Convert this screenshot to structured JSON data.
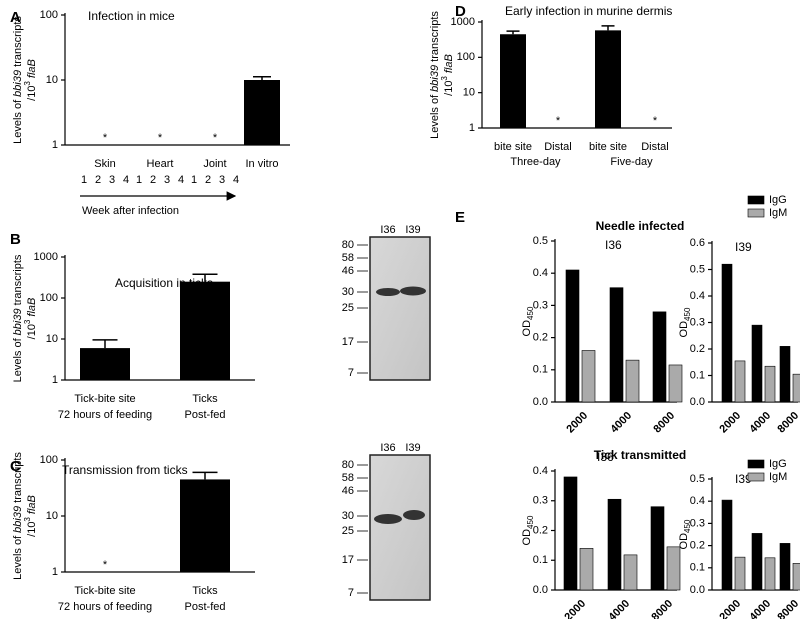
{
  "chart_data": [
    {
      "type": "bar",
      "panel_label": "A",
      "title": "Infection in mice",
      "y_scale": "log",
      "y_label": [
        "Levels of ",
        "bbi39",
        " transcripts"
      ],
      "y_label_2": [
        "/10",
        "3",
        "flaB"
      ],
      "categories": [
        "Skin",
        "Heart",
        "Joint",
        "In vitro"
      ],
      "sublabels": [
        [
          "1",
          "2",
          "3",
          "4"
        ],
        [
          "1",
          "2",
          "3",
          "4"
        ],
        [
          "1",
          "2",
          "3",
          "4"
        ],
        null
      ],
      "x_label": "Week after infection",
      "values": [
        null,
        null,
        null,
        10
      ],
      "errors": [
        null,
        null,
        null,
        1.2
      ],
      "value_labels": [
        "*",
        "*",
        "*",
        null
      ],
      "color": "#000000",
      "ylim": [
        1,
        100
      ],
      "yticks": [
        1,
        10,
        100
      ]
    },
    {
      "type": "bar",
      "panel_label": "B",
      "title": "Acquisition in ticks",
      "y_scale": "log",
      "y_label": [
        "Levels of ",
        "bbi39",
        " transcripts"
      ],
      "y_label_2": [
        "/10",
        "3",
        "flaB"
      ],
      "categories": [
        "Tick-bite site",
        "Ticks"
      ],
      "sublabels": [
        "72 hours of feeding",
        "Post-fed"
      ],
      "values": [
        6,
        250
      ],
      "errors": [
        3.5,
        130
      ],
      "color": "#000000",
      "ylim": [
        1,
        1000
      ],
      "yticks": [
        1,
        10,
        100,
        1000
      ]
    },
    {
      "type": "bar",
      "panel_label": "C",
      "title": "Transmission from ticks",
      "y_scale": "log",
      "y_label": [
        "Levels of ",
        "bbi39",
        " transcripts"
      ],
      "y_label_2": [
        "/10",
        "3",
        "flaB"
      ],
      "categories": [
        "Tick-bite site",
        "Ticks"
      ],
      "sublabels": [
        "72 hours of feeding",
        "Post-fed"
      ],
      "values": [
        null,
        45
      ],
      "errors": [
        null,
        15
      ],
      "value_labels": [
        "*",
        null
      ],
      "color": "#000000",
      "ylim": [
        1,
        100
      ],
      "yticks": [
        1,
        10,
        100
      ]
    },
    {
      "type": "bar",
      "panel_label": "D",
      "title": "Early infection in murine dermis",
      "y_scale": "log",
      "y_label": [
        "Levels of ",
        "bbi39",
        " transcripts"
      ],
      "y_label_2": [
        "/10",
        "3",
        "flaB"
      ],
      "categories": [
        "bite site",
        "Distal",
        "bite site",
        "Distal"
      ],
      "groups": [
        "Three-day",
        "Five-day"
      ],
      "values": [
        450,
        null,
        580,
        null
      ],
      "errors": [
        100,
        null,
        200,
        null
      ],
      "value_labels": [
        null,
        "*",
        null,
        "*"
      ],
      "color": "#000000",
      "ylim": [
        1,
        1000
      ],
      "yticks": [
        1,
        10,
        100,
        1000
      ]
    },
    {
      "type": "bar",
      "section_title": "Needle infected",
      "title": "I36",
      "y_label": "OD",
      "y_label_sub": "450",
      "categories": [
        "2000",
        "4000",
        "8000"
      ],
      "series": [
        {
          "name": "IgG",
          "color": "#000000",
          "values": [
            0.41,
            0.355,
            0.28
          ]
        },
        {
          "name": "IgM",
          "color": "#aaaaaa",
          "values": [
            0.16,
            0.13,
            0.115
          ]
        }
      ],
      "ylim": [
        0,
        0.5
      ],
      "yticks": [
        {
          "value": 0,
          "label": "0.0"
        },
        0.1,
        0.2,
        0.3,
        0.4,
        0.5
      ]
    },
    {
      "type": "bar",
      "title": "I39",
      "y_label": "OD",
      "y_label_sub": "450",
      "legend": "upper right",
      "categories": [
        "2000",
        "4000",
        "8000"
      ],
      "series": [
        {
          "name": "IgG",
          "color": "#000000",
          "values": [
            0.52,
            0.29,
            0.21
          ]
        },
        {
          "name": "IgM",
          "color": "#aaaaaa",
          "values": [
            0.155,
            0.135,
            0.105
          ]
        }
      ],
      "ylim": [
        0,
        0.6
      ],
      "yticks": [
        {
          "value": 0,
          "label": "0.0"
        },
        0.1,
        0.2,
        0.3,
        0.4,
        0.5,
        0.6
      ]
    },
    {
      "type": "bar",
      "section_title": "Tick transmitted",
      "title": "I36",
      "y_label": "OD",
      "y_label_sub": "450",
      "categories": [
        "2000",
        "4000",
        "8000"
      ],
      "series": [
        {
          "name": "IgG",
          "color": "#000000",
          "values": [
            0.38,
            0.305,
            0.28
          ]
        },
        {
          "name": "IgM",
          "color": "#aaaaaa",
          "values": [
            0.14,
            0.118,
            0.145
          ]
        }
      ],
      "ylim": [
        0,
        0.4
      ],
      "yticks": [
        {
          "value": 0,
          "label": "0.0"
        },
        0.1,
        0.2,
        0.3,
        0.4
      ]
    },
    {
      "type": "bar",
      "title": "I39",
      "y_label": "OD",
      "y_label_sub": "450",
      "legend": "upper right",
      "categories": [
        "2000",
        "4000",
        "8000"
      ],
      "series": [
        {
          "name": "IgG",
          "color": "#000000",
          "values": [
            0.405,
            0.255,
            0.21
          ]
        },
        {
          "name": "IgM",
          "color": "#aaaaaa",
          "values": [
            0.148,
            0.145,
            0.12
          ]
        }
      ],
      "ylim": [
        0,
        0.5
      ],
      "yticks": [
        {
          "value": 0,
          "label": "0.0"
        },
        0.1,
        0.2,
        0.3,
        0.4,
        0.5
      ]
    }
  ],
  "figure_e": {
    "label": "E",
    "gels": [
      {
        "lanes": [
          "I36",
          "I39"
        ],
        "markers": [
          80,
          58,
          46,
          30,
          25,
          17,
          7
        ]
      },
      {
        "lanes": [
          "I36",
          "I39"
        ],
        "markers": [
          80,
          58,
          46,
          30,
          25,
          17,
          7
        ]
      }
    ]
  }
}
